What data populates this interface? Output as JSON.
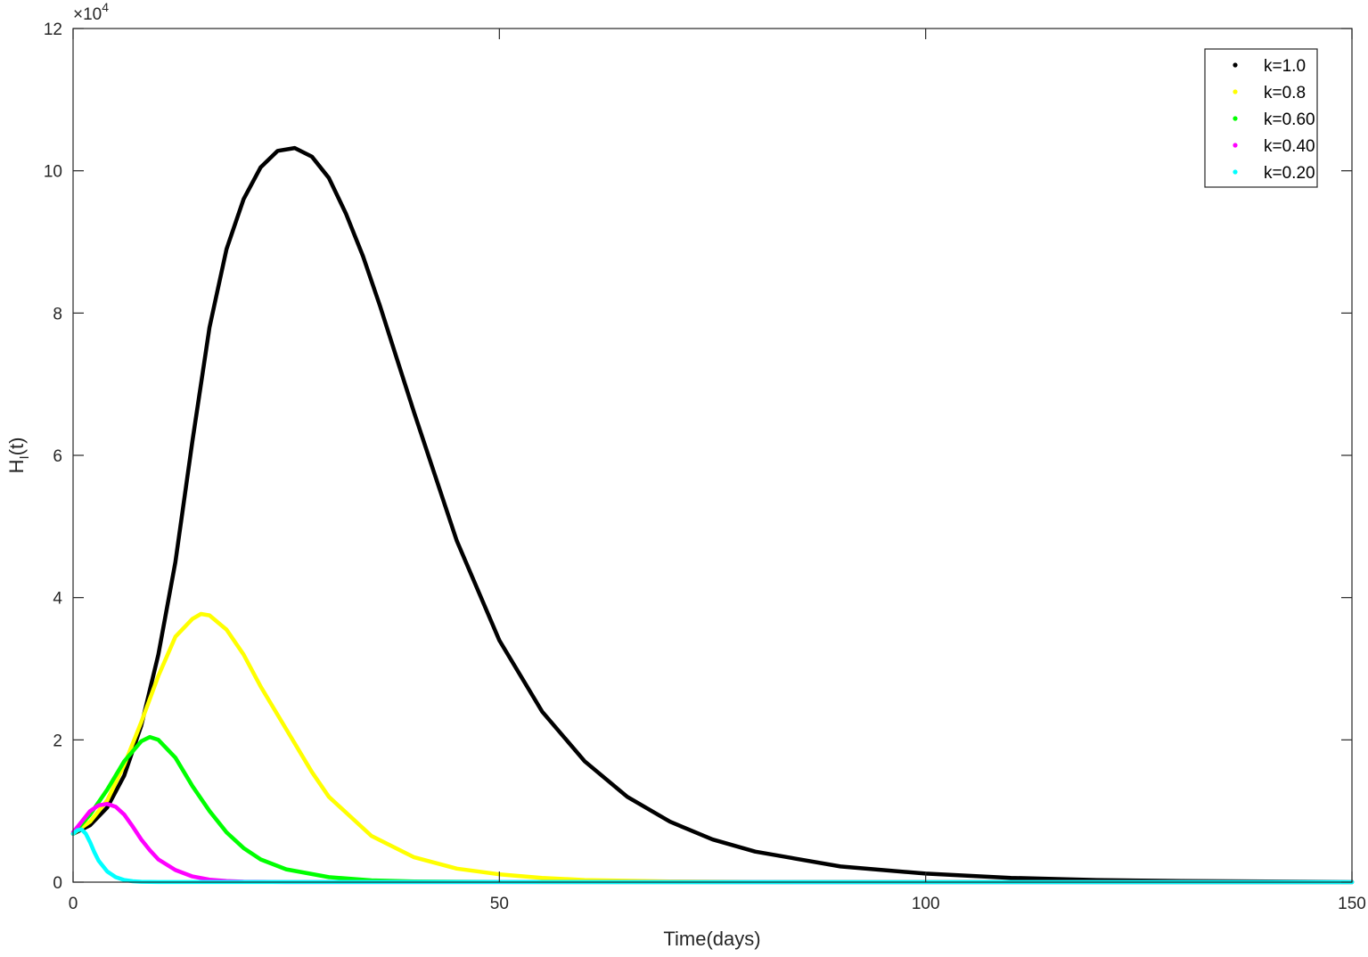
{
  "chart_data": {
    "type": "line",
    "title": "",
    "xlabel": "Time(days)",
    "ylabel_main": "H",
    "ylabel_sub": "I",
    "ylabel_tail": "(t)",
    "xlim": [
      0,
      150
    ],
    "ylim": [
      0,
      120000
    ],
    "x_ticks": [
      0,
      50,
      100,
      150
    ],
    "y_ticks": [
      0,
      20000,
      40000,
      60000,
      80000,
      100000,
      120000
    ],
    "x_tick_labels": [
      "0",
      "50",
      "100",
      "150"
    ],
    "y_tick_labels": [
      "0",
      "2",
      "4",
      "6",
      "8",
      "10",
      "12"
    ],
    "y_exponent_times": "×10",
    "y_exponent_power": "4",
    "grid": false,
    "legend_position": "top-right",
    "series": [
      {
        "name": "k=1.0",
        "color": "#000000",
        "points": [
          [
            0,
            6800
          ],
          [
            2,
            8000
          ],
          [
            4,
            10500
          ],
          [
            6,
            15000
          ],
          [
            8,
            22000
          ],
          [
            10,
            32000
          ],
          [
            12,
            45000
          ],
          [
            14,
            62000
          ],
          [
            16,
            78000
          ],
          [
            18,
            89000
          ],
          [
            20,
            96000
          ],
          [
            22,
            100500
          ],
          [
            24,
            102800
          ],
          [
            26,
            103200
          ],
          [
            28,
            102000
          ],
          [
            30,
            99000
          ],
          [
            32,
            94000
          ],
          [
            34,
            88000
          ],
          [
            36,
            81000
          ],
          [
            38,
            73500
          ],
          [
            40,
            66000
          ],
          [
            45,
            48000
          ],
          [
            50,
            34000
          ],
          [
            55,
            24000
          ],
          [
            60,
            17000
          ],
          [
            65,
            12000
          ],
          [
            70,
            8500
          ],
          [
            75,
            6000
          ],
          [
            80,
            4300
          ],
          [
            90,
            2200
          ],
          [
            100,
            1200
          ],
          [
            110,
            600
          ],
          [
            120,
            300
          ],
          [
            130,
            150
          ],
          [
            150,
            40
          ]
        ]
      },
      {
        "name": "k=0.8",
        "color": "#ffff00",
        "points": [
          [
            0,
            6800
          ],
          [
            2,
            8500
          ],
          [
            4,
            11500
          ],
          [
            6,
            16500
          ],
          [
            8,
            22500
          ],
          [
            10,
            29000
          ],
          [
            12,
            34500
          ],
          [
            14,
            37000
          ],
          [
            15,
            37700
          ],
          [
            16,
            37500
          ],
          [
            18,
            35500
          ],
          [
            20,
            32000
          ],
          [
            22,
            27500
          ],
          [
            25,
            21500
          ],
          [
            28,
            15500
          ],
          [
            30,
            12000
          ],
          [
            35,
            6500
          ],
          [
            40,
            3500
          ],
          [
            45,
            1900
          ],
          [
            50,
            1100
          ],
          [
            55,
            600
          ],
          [
            60,
            300
          ],
          [
            70,
            100
          ],
          [
            80,
            30
          ],
          [
            150,
            0
          ]
        ]
      },
      {
        "name": "k=0.60",
        "color": "#00ff00",
        "points": [
          [
            0,
            6800
          ],
          [
            2,
            9500
          ],
          [
            4,
            13000
          ],
          [
            6,
            17000
          ],
          [
            8,
            19800
          ],
          [
            9,
            20400
          ],
          [
            10,
            20000
          ],
          [
            12,
            17500
          ],
          [
            14,
            13500
          ],
          [
            16,
            10000
          ],
          [
            18,
            7000
          ],
          [
            20,
            4800
          ],
          [
            22,
            3200
          ],
          [
            25,
            1800
          ],
          [
            30,
            700
          ],
          [
            35,
            250
          ],
          [
            40,
            100
          ],
          [
            50,
            20
          ],
          [
            150,
            0
          ]
        ]
      },
      {
        "name": "k=0.40",
        "color": "#ff00ff",
        "points": [
          [
            0,
            7000
          ],
          [
            1,
            8500
          ],
          [
            2,
            10000
          ],
          [
            3,
            10800
          ],
          [
            4,
            11000
          ],
          [
            5,
            10600
          ],
          [
            6,
            9500
          ],
          [
            7,
            7800
          ],
          [
            8,
            6000
          ],
          [
            9,
            4500
          ],
          [
            10,
            3200
          ],
          [
            12,
            1700
          ],
          [
            14,
            800
          ],
          [
            16,
            350
          ],
          [
            18,
            150
          ],
          [
            20,
            60
          ],
          [
            25,
            10
          ],
          [
            150,
            0
          ]
        ]
      },
      {
        "name": "k=0.20",
        "color": "#00ffff",
        "points": [
          [
            0,
            6800
          ],
          [
            0.5,
            7300
          ],
          [
            1,
            7400
          ],
          [
            1.5,
            6800
          ],
          [
            2,
            5600
          ],
          [
            2.5,
            4200
          ],
          [
            3,
            3000
          ],
          [
            4,
            1500
          ],
          [
            5,
            700
          ],
          [
            6,
            300
          ],
          [
            7,
            120
          ],
          [
            8,
            50
          ],
          [
            10,
            10
          ],
          [
            150,
            0
          ]
        ]
      }
    ]
  }
}
